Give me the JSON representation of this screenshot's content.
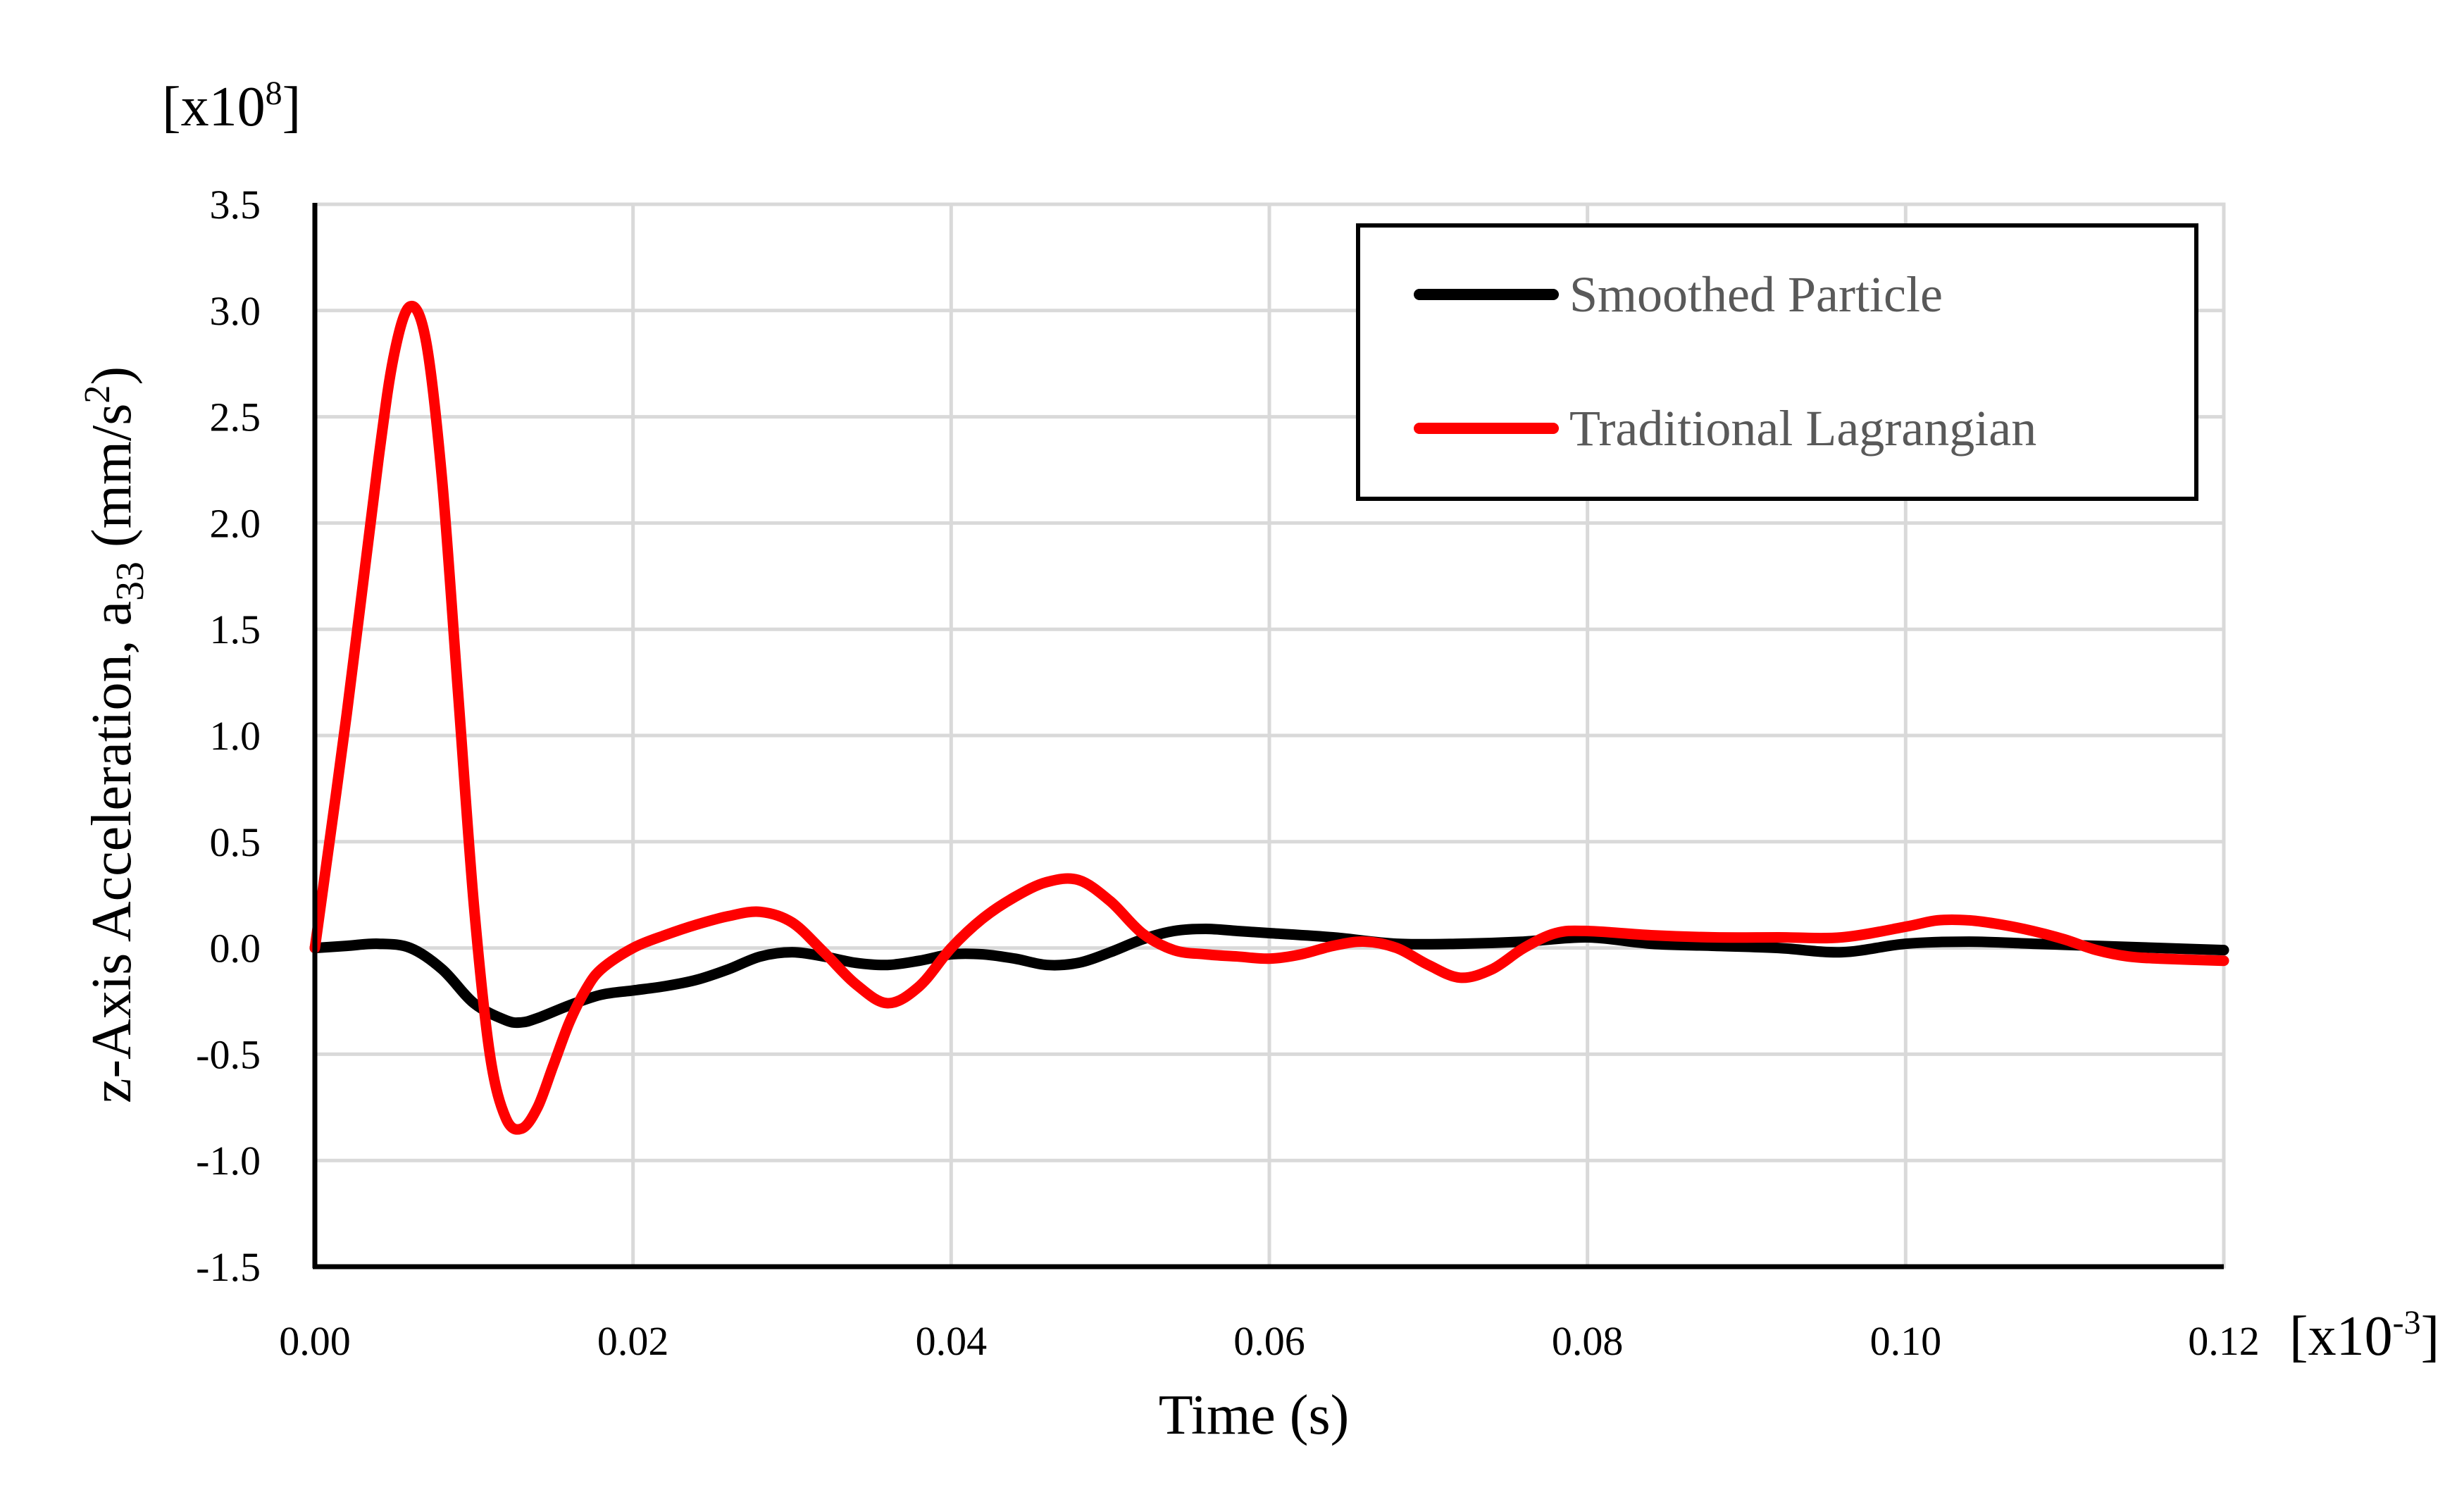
{
  "chart_data": {
    "type": "line",
    "xlabel": "Time (s)",
    "ylabel_prefix": "z-Axis Acceleration, a",
    "ylabel_sub": "33",
    "ylabel_unit": " (mm/s",
    "ylabel_unit_sup": "2",
    "ylabel_close": ")",
    "y_multiplier": "[x10",
    "y_multiplier_exp": "8",
    "y_multiplier_close": "]",
    "x_multiplier": "[x10",
    "x_multiplier_exp": "-3",
    "x_multiplier_close": "]",
    "xlim": [
      0,
      0.12
    ],
    "ylim": [
      -1.5,
      3.5
    ],
    "xticks": [
      "0.00",
      "0.02",
      "0.04",
      "0.06",
      "0.08",
      "0.10",
      "0.12"
    ],
    "xtick_values": [
      0,
      0.02,
      0.04,
      0.06,
      0.08,
      0.1,
      0.12
    ],
    "yticks": [
      "3.5",
      "3.0",
      "2.5",
      "2.0",
      "1.5",
      "1.0",
      "0.5",
      "0.0",
      "-0.5",
      "-1.0",
      "-1.5"
    ],
    "ytick_values": [
      3.5,
      3.0,
      2.5,
      2.0,
      1.5,
      1.0,
      0.5,
      0.0,
      -0.5,
      -1.0,
      -1.5
    ],
    "grid": true,
    "legend_position": "top-right",
    "series": [
      {
        "name": "Smoothed Particle",
        "color": "#000000",
        "x": [
          0,
          0.002,
          0.004,
          0.006,
          0.008,
          0.01,
          0.012,
          0.013,
          0.014,
          0.016,
          0.018,
          0.02,
          0.022,
          0.024,
          0.026,
          0.028,
          0.03,
          0.032,
          0.034,
          0.036,
          0.038,
          0.04,
          0.042,
          0.044,
          0.046,
          0.048,
          0.05,
          0.052,
          0.054,
          0.056,
          0.058,
          0.06,
          0.064,
          0.068,
          0.072,
          0.076,
          0.08,
          0.084,
          0.088,
          0.092,
          0.096,
          0.1,
          0.104,
          0.108,
          0.112,
          0.116,
          0.12
        ],
        "y": [
          0.0,
          0.01,
          0.02,
          0.0,
          -0.1,
          -0.26,
          -0.34,
          -0.35,
          -0.33,
          -0.27,
          -0.22,
          -0.2,
          -0.18,
          -0.15,
          -0.1,
          -0.04,
          -0.02,
          -0.04,
          -0.07,
          -0.08,
          -0.06,
          -0.03,
          -0.03,
          -0.05,
          -0.08,
          -0.07,
          -0.02,
          0.04,
          0.08,
          0.09,
          0.08,
          0.07,
          0.05,
          0.02,
          0.02,
          0.03,
          0.05,
          0.02,
          0.01,
          0.0,
          -0.02,
          0.02,
          0.03,
          0.02,
          0.01,
          0.0,
          -0.01
        ]
      },
      {
        "name": "Traditional Lagrangian",
        "color": "#ff0000",
        "x": [
          0,
          0.002,
          0.004,
          0.005,
          0.006,
          0.007,
          0.008,
          0.009,
          0.01,
          0.011,
          0.012,
          0.013,
          0.014,
          0.015,
          0.016,
          0.017,
          0.018,
          0.02,
          0.022,
          0.024,
          0.026,
          0.028,
          0.03,
          0.032,
          0.034,
          0.036,
          0.038,
          0.04,
          0.042,
          0.044,
          0.046,
          0.048,
          0.05,
          0.052,
          0.054,
          0.056,
          0.058,
          0.06,
          0.062,
          0.064,
          0.066,
          0.068,
          0.07,
          0.072,
          0.074,
          0.076,
          0.078,
          0.08,
          0.084,
          0.088,
          0.092,
          0.096,
          0.1,
          0.102,
          0.104,
          0.106,
          0.108,
          0.11,
          0.112,
          0.114,
          0.116,
          0.12
        ],
        "y": [
          0.0,
          1.1,
          2.3,
          2.8,
          3.02,
          2.85,
          2.2,
          1.2,
          0.2,
          -0.5,
          -0.8,
          -0.85,
          -0.75,
          -0.55,
          -0.35,
          -0.2,
          -0.1,
          0.0,
          0.06,
          0.11,
          0.15,
          0.17,
          0.12,
          -0.02,
          -0.17,
          -0.26,
          -0.18,
          0.0,
          0.14,
          0.24,
          0.31,
          0.32,
          0.22,
          0.07,
          -0.01,
          -0.03,
          -0.04,
          -0.05,
          -0.03,
          0.01,
          0.03,
          0.0,
          -0.08,
          -0.14,
          -0.1,
          0.0,
          0.07,
          0.08,
          0.06,
          0.05,
          0.05,
          0.05,
          0.1,
          0.13,
          0.13,
          0.11,
          0.08,
          0.04,
          -0.01,
          -0.04,
          -0.05,
          -0.06
        ]
      }
    ]
  }
}
